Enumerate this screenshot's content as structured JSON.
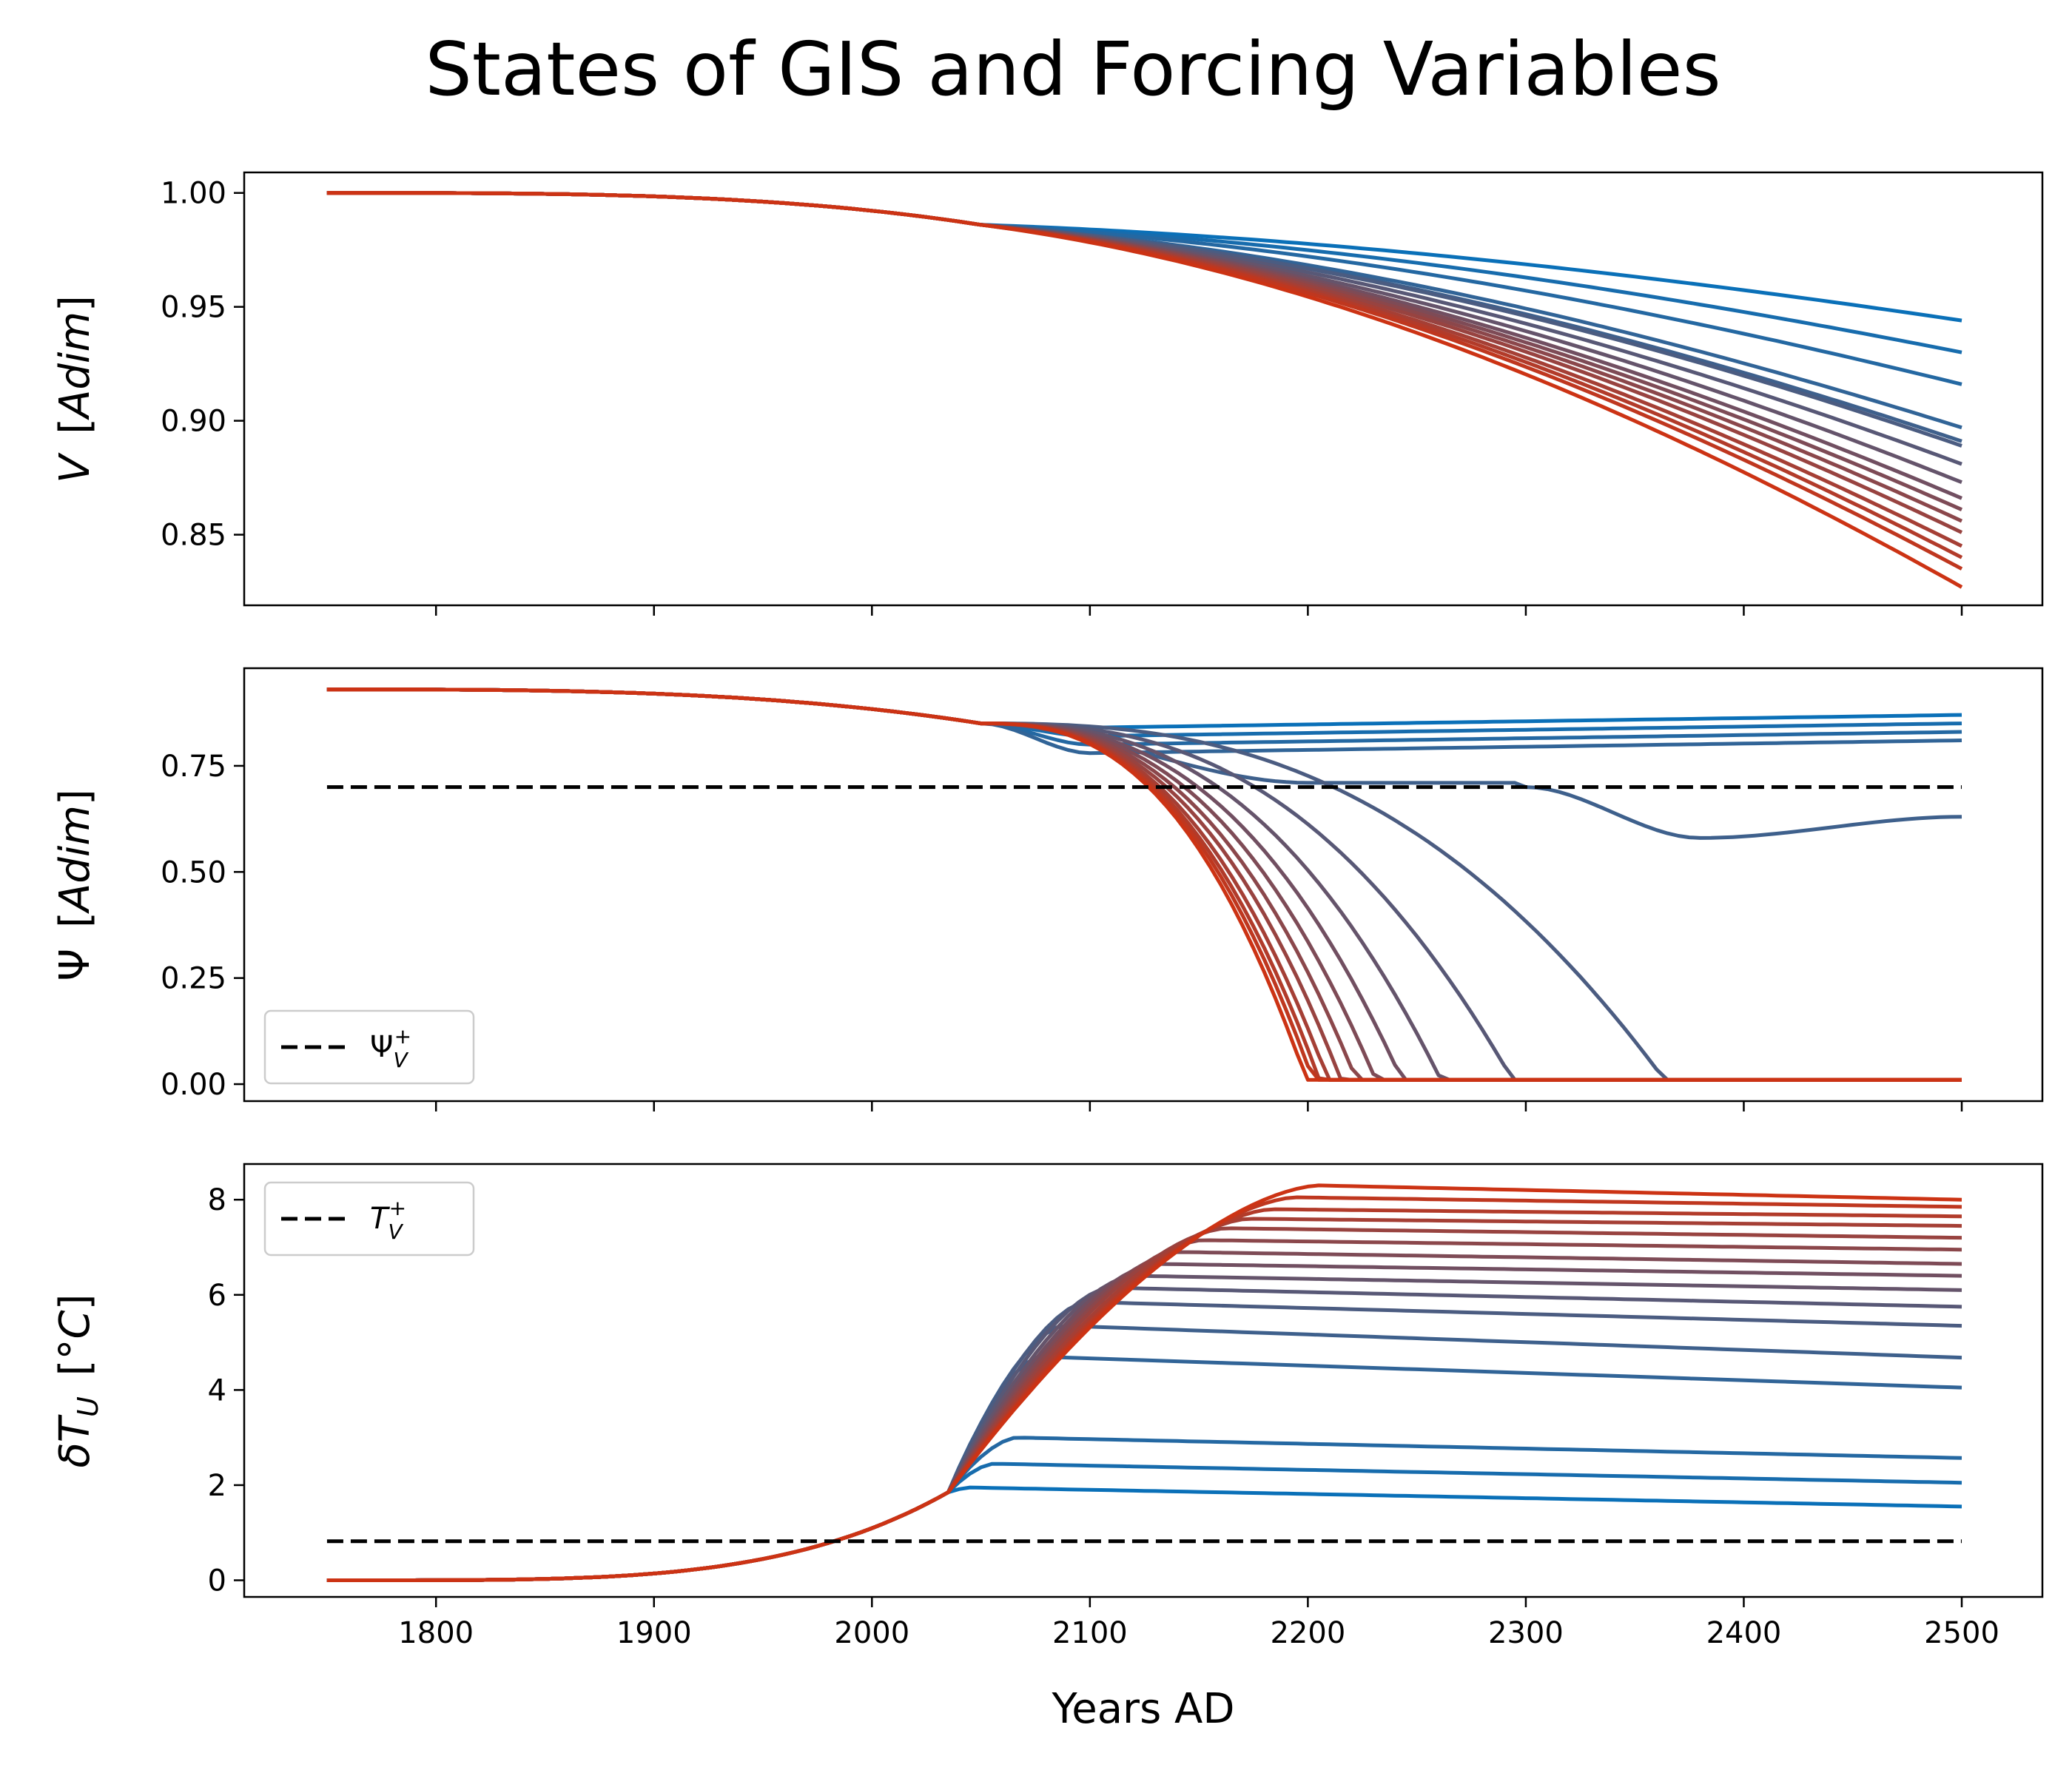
{
  "figure": {
    "title": "States of GIS and Forcing Variables"
  },
  "colors": {
    "start": "#0a70b8",
    "end": "#cc3314",
    "threshold": "#000000"
  },
  "chart_data": [
    {
      "type": "line",
      "panel": "V",
      "ylabel": "V [Adim]",
      "ylabel_parts": {
        "main": "V",
        "unit": "[Adim]"
      },
      "xlim": [
        1712,
        2537
      ],
      "ylim": [
        0.819,
        1.009
      ],
      "yticks": [
        1.0,
        0.95,
        0.9,
        0.85
      ],
      "ytick_labels": [
        "1.00",
        "0.95",
        "0.90",
        "0.85"
      ],
      "show_xtick_labels": false,
      "legend": null,
      "series_from_2050_endvalues": [
        0.944,
        0.93,
        0.916,
        0.897,
        0.891,
        0.889,
        0.881,
        0.873,
        0.866,
        0.861,
        0.856,
        0.851,
        0.845,
        0.84,
        0.835,
        0.827
      ],
      "shared_prefix": {
        "x": [
          1750,
          1800,
          1850,
          1900,
          1950,
          2000,
          2030,
          2050
        ],
        "y": [
          1.0,
          1.0,
          0.9995,
          0.999,
          0.997,
          0.994,
          0.99,
          0.986
        ]
      }
    },
    {
      "type": "line",
      "panel": "Psi",
      "ylabel": "Ψ [Adim]",
      "ylabel_parts": {
        "main": "Ψ",
        "unit": "[Adim]"
      },
      "xlim": [
        1712,
        2537
      ],
      "ylim": [
        -0.04,
        0.98
      ],
      "yticks": [
        0.75,
        0.5,
        0.25,
        0.0
      ],
      "ytick_labels": [
        "0.75",
        "0.50",
        "0.25",
        "0.00"
      ],
      "show_xtick_labels": false,
      "threshold": {
        "value": 0.7,
        "label": "Ψ",
        "label_sub": "V",
        "label_sup": "+"
      },
      "legend": {
        "position": "lower left"
      },
      "series_endvalues": [
        0.87,
        0.85,
        0.83,
        0.81,
        0.63,
        0.01,
        0.01,
        0.01,
        0.01,
        0.01,
        0.01,
        0.01,
        0.01,
        0.01,
        0.01,
        0.01
      ],
      "series_collapse_year": [
        null,
        null,
        null,
        null,
        null,
        2365,
        2295,
        2262,
        2244,
        2232,
        2223,
        2216,
        2210,
        2206,
        2203,
        2200
      ]
    },
    {
      "type": "line",
      "panel": "dT",
      "ylabel": "δT_U [°C]",
      "ylabel_parts": {
        "main": "δT",
        "sub": "U",
        "unit": "[°C]"
      },
      "xlabel": "Years AD",
      "xlim": [
        1712,
        2537
      ],
      "ylim": [
        -0.35,
        8.75
      ],
      "yticks": [
        8,
        6,
        4,
        2,
        0
      ],
      "ytick_labels": [
        "8",
        "6",
        "4",
        "2",
        "0"
      ],
      "xticks": [
        1800,
        1900,
        2000,
        2100,
        2200,
        2300,
        2400,
        2500
      ],
      "xtick_labels": [
        "1800",
        "1900",
        "2000",
        "2100",
        "2200",
        "2300",
        "2400",
        "2500"
      ],
      "threshold": {
        "value": 0.82,
        "label": "T",
        "label_sub": "V",
        "label_sup": "+"
      },
      "legend": {
        "position": "upper left"
      },
      "series_endvalues": [
        1.55,
        2.05,
        2.57,
        4.05,
        4.68,
        5.35,
        5.75,
        6.1,
        6.4,
        6.65,
        6.95,
        7.2,
        7.45,
        7.65,
        7.85,
        8.0
      ],
      "series_plateau": [
        1.95,
        2.45,
        3.0,
        4.7,
        5.35,
        5.85,
        6.15,
        6.4,
        6.65,
        6.9,
        7.15,
        7.4,
        7.6,
        7.8,
        8.05,
        8.3
      ]
    }
  ]
}
